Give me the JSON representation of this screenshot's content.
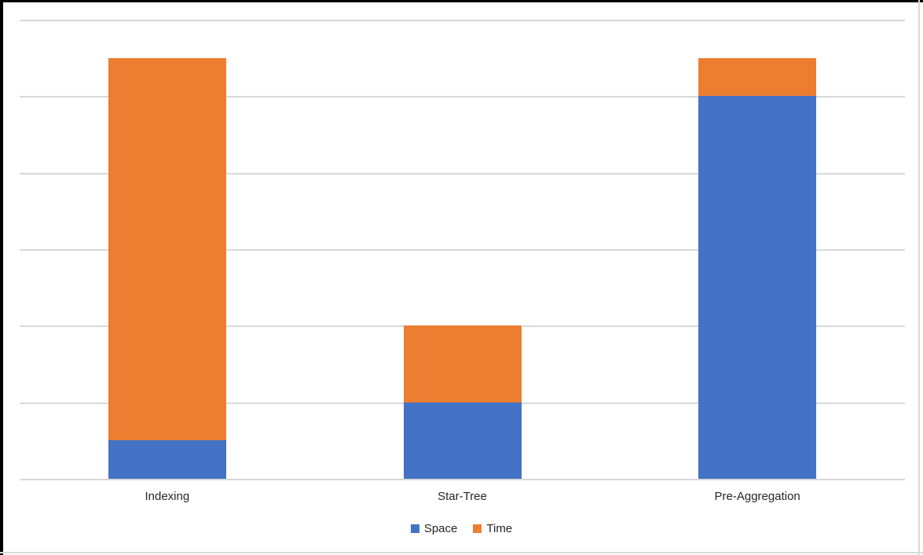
{
  "chart_data": {
    "type": "bar",
    "stacked": true,
    "title": "",
    "xlabel": "",
    "ylabel": "",
    "categories": [
      "Indexing",
      "Star-Tree",
      "Pre-Aggregation"
    ],
    "series": [
      {
        "name": "Space",
        "color": "#4472C4",
        "values": [
          0.5,
          1,
          5
        ]
      },
      {
        "name": "Time",
        "color": "#ED7D31",
        "values": [
          5,
          1,
          0.5
        ]
      }
    ],
    "ylim": [
      0,
      6
    ],
    "y_gridline_step": 1,
    "y_tick_labels_visible": false,
    "gridlines": true,
    "gridline_color": "#D9D9D9",
    "legend_position": "bottom"
  },
  "frame": {
    "background": "#FFFFFF",
    "outer_border_color": "#000000",
    "chart_border_color": "#D9D9D9",
    "text_color": "#262626"
  }
}
